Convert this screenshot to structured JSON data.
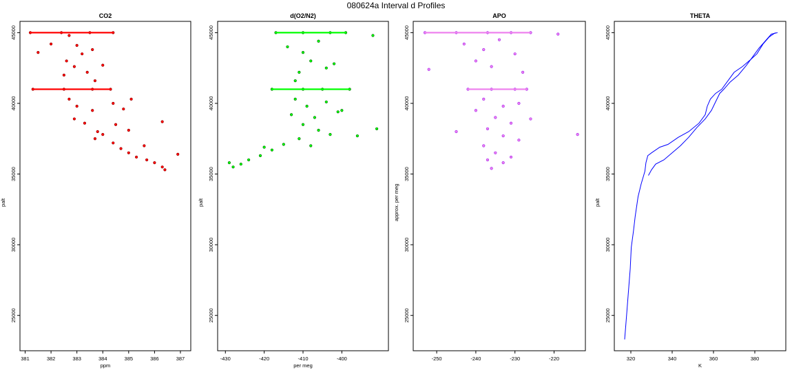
{
  "page": {
    "title": "080624a   Interval d Profiles"
  },
  "chart_data": [
    {
      "id": "co2",
      "type": "scatter",
      "title": "CO2",
      "xlabel": "ppm",
      "ylabel": "palt",
      "xlim": [
        380.8,
        387.4
      ],
      "ylim": [
        22500,
        45800
      ],
      "xticks": [
        381,
        382,
        383,
        384,
        385,
        386,
        387
      ],
      "yticks": [
        25000,
        30000,
        35000,
        40000,
        45000
      ],
      "colors": {
        "points": "#ff0000",
        "outline": "#8b0000"
      },
      "series": [
        {
          "points": [
            [
              381.2,
              45000
            ],
            [
              382.4,
              45000
            ],
            [
              383.5,
              45000
            ],
            [
              384.4,
              45000
            ],
            [
              381.5,
              43600
            ],
            [
              382.0,
              44200
            ],
            [
              382.7,
              44800
            ],
            [
              383.0,
              44100
            ],
            [
              383.2,
              43500
            ],
            [
              382.6,
              43000
            ],
            [
              383.6,
              43800
            ],
            [
              382.9,
              42600
            ],
            [
              383.4,
              42200
            ],
            [
              384.0,
              42700
            ],
            [
              382.5,
              42000
            ],
            [
              383.7,
              41600
            ],
            [
              381.3,
              41000
            ],
            [
              382.5,
              41000
            ],
            [
              383.6,
              41000
            ],
            [
              384.3,
              41000
            ],
            [
              382.7,
              40300
            ],
            [
              383.0,
              39800
            ],
            [
              383.6,
              39500
            ],
            [
              384.4,
              40000
            ],
            [
              384.8,
              39600
            ],
            [
              385.1,
              40300
            ],
            [
              382.9,
              38900
            ],
            [
              383.3,
              38600
            ],
            [
              383.8,
              38000
            ],
            [
              384.0,
              37800
            ],
            [
              384.4,
              37200
            ],
            [
              383.7,
              37500
            ],
            [
              384.7,
              36800
            ],
            [
              385.0,
              36500
            ],
            [
              385.3,
              36200
            ],
            [
              385.7,
              36000
            ],
            [
              386.0,
              35800
            ],
            [
              386.3,
              35500
            ],
            [
              386.9,
              36400
            ],
            [
              386.4,
              35300
            ],
            [
              385.0,
              38100
            ],
            [
              385.6,
              37000
            ],
            [
              386.3,
              38700
            ],
            [
              384.5,
              38500
            ]
          ]
        }
      ]
    },
    {
      "id": "do2n2",
      "type": "scatter",
      "title": "d(O2/N2)",
      "xlabel": "per meg",
      "ylabel": "palt",
      "xlim": [
        -432,
        -388
      ],
      "ylim": [
        22500,
        45800
      ],
      "xticks": [
        -430,
        -420,
        -410,
        -400
      ],
      "yticks": [
        25000,
        30000,
        35000,
        40000,
        45000
      ],
      "colors": {
        "points": "#00ff00",
        "outline": "#006400"
      },
      "series": [
        {
          "points": [
            [
              -417,
              45000
            ],
            [
              -410,
              45000
            ],
            [
              -403,
              45000
            ],
            [
              -399,
              45000
            ],
            [
              -414,
              44000
            ],
            [
              -410,
              43600
            ],
            [
              -406,
              44400
            ],
            [
              -408,
              43000
            ],
            [
              -404,
              42500
            ],
            [
              -411,
              42200
            ],
            [
              -402,
              42800
            ],
            [
              -412,
              41600
            ],
            [
              -418,
              41000
            ],
            [
              -410,
              41000
            ],
            [
              -405,
              41000
            ],
            [
              -398,
              41000
            ],
            [
              -412,
              40300
            ],
            [
              -409,
              39800
            ],
            [
              -404,
              40100
            ],
            [
              -413,
              39200
            ],
            [
              -407,
              39000
            ],
            [
              -401,
              39400
            ],
            [
              -410,
              38500
            ],
            [
              -406,
              38100
            ],
            [
              -403,
              37800
            ],
            [
              -411,
              37500
            ],
            [
              -408,
              37000
            ],
            [
              -415,
              37100
            ],
            [
              -418,
              36700
            ],
            [
              -421,
              36300
            ],
            [
              -424,
              36000
            ],
            [
              -426,
              35700
            ],
            [
              -428,
              35500
            ],
            [
              -429,
              35800
            ],
            [
              -420,
              36900
            ],
            [
              -396,
              37700
            ],
            [
              -391,
              38200
            ],
            [
              -392,
              44800
            ],
            [
              -400,
              39500
            ]
          ]
        }
      ]
    },
    {
      "id": "apo",
      "type": "scatter",
      "title": "APO",
      "xlabel": "",
      "ylabel": "approx. per meg",
      "xlim": [
        -256,
        -212
      ],
      "ylim": [
        22500,
        45800
      ],
      "xticks": [
        -250,
        -240,
        -230,
        -220
      ],
      "yticks": [
        25000,
        30000,
        35000,
        40000,
        45000
      ],
      "colors": {
        "points": "#ee82ee",
        "outline": "#a020f0"
      },
      "series": [
        {
          "points": [
            [
              -253,
              45000
            ],
            [
              -245,
              45000
            ],
            [
              -237,
              45000
            ],
            [
              -231,
              45000
            ],
            [
              -226,
              45000
            ],
            [
              -243,
              44200
            ],
            [
              -238,
              43800
            ],
            [
              -234,
              44500
            ],
            [
              -230,
              43500
            ],
            [
              -240,
              43000
            ],
            [
              -236,
              42600
            ],
            [
              -228,
              42200
            ],
            [
              -242,
              41000
            ],
            [
              -236,
              41000
            ],
            [
              -230,
              41000
            ],
            [
              -227,
              41000
            ],
            [
              -238,
              40300
            ],
            [
              -233,
              39800
            ],
            [
              -229,
              40000
            ],
            [
              -240,
              39500
            ],
            [
              -235,
              39000
            ],
            [
              -231,
              38600
            ],
            [
              -226,
              38900
            ],
            [
              -237,
              38200
            ],
            [
              -233,
              37700
            ],
            [
              -229,
              37400
            ],
            [
              -238,
              37000
            ],
            [
              -235,
              36500
            ],
            [
              -237,
              36000
            ],
            [
              -233,
              35800
            ],
            [
              -236,
              35400
            ],
            [
              -231,
              36200
            ],
            [
              -245,
              38000
            ],
            [
              -214,
              37800
            ],
            [
              -252,
              42400
            ],
            [
              -219,
              44900
            ]
          ]
        }
      ]
    },
    {
      "id": "theta",
      "type": "line",
      "title": "THETA",
      "xlabel": "K",
      "ylabel": "palt",
      "xlim": [
        312,
        395
      ],
      "ylim": [
        22500,
        45800
      ],
      "xticks": [
        320,
        340,
        360,
        380
      ],
      "yticks": [
        25000,
        30000,
        35000,
        40000,
        45000
      ],
      "colors": {
        "line": "#0000ff"
      },
      "series": [
        {
          "points": [
            [
              317,
              23300
            ],
            [
              317.5,
              24200
            ],
            [
              318.2,
              25500
            ],
            [
              319,
              27000
            ],
            [
              319.7,
              28300
            ],
            [
              320.2,
              29800
            ],
            [
              321.3,
              31000
            ],
            [
              322.1,
              32000
            ],
            [
              323.5,
              33400
            ],
            [
              325,
              34300
            ],
            [
              326.8,
              35200
            ],
            [
              327.3,
              35800
            ],
            [
              328.2,
              36300
            ],
            [
              330,
              36500
            ],
            [
              334,
              36900
            ],
            [
              338,
              37100
            ],
            [
              343,
              37600
            ],
            [
              348,
              38000
            ],
            [
              353,
              38600
            ],
            [
              356,
              39200
            ],
            [
              357,
              39800
            ],
            [
              358.5,
              40300
            ],
            [
              361,
              40700
            ],
            [
              364,
              41000
            ],
            [
              367,
              41600
            ],
            [
              370,
              42200
            ],
            [
              374,
              42600
            ],
            [
              378,
              43100
            ],
            [
              381,
              43500
            ],
            [
              384,
              44200
            ],
            [
              387,
              44700
            ],
            [
              390,
              45000
            ]
          ]
        },
        {
          "points": [
            [
              328.5,
              34900
            ],
            [
              330,
              35300
            ],
            [
              332,
              35700
            ],
            [
              336,
              36000
            ],
            [
              340,
              36500
            ],
            [
              344,
              37000
            ],
            [
              348,
              37600
            ],
            [
              352,
              38300
            ],
            [
              356,
              38900
            ],
            [
              359,
              39500
            ],
            [
              361,
              40100
            ],
            [
              363,
              40700
            ],
            [
              365,
              41000
            ],
            [
              368,
              41500
            ],
            [
              372,
              42000
            ],
            [
              376,
              42700
            ],
            [
              379,
              43300
            ],
            [
              382,
              43900
            ],
            [
              385,
              44400
            ],
            [
              388,
              44900
            ],
            [
              391,
              45000
            ]
          ]
        }
      ]
    }
  ]
}
